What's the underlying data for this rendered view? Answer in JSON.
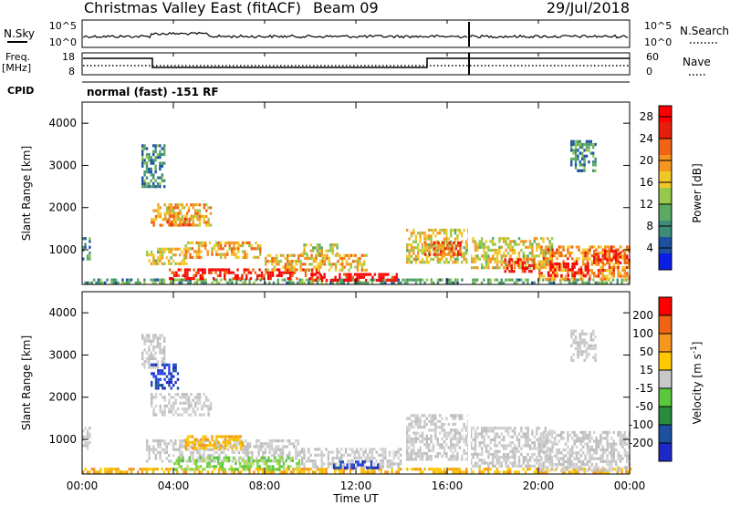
{
  "header": {
    "title": "Christmas Valley East (fitACF)",
    "beam": "Beam 09",
    "date": "29/Jul/2018"
  },
  "nsky_panel": {
    "left_label": "N.Sky",
    "right_label": "N.Search",
    "left_ticks": [
      "10^5",
      "10^0"
    ],
    "right_ticks": [
      "10^5",
      "10^0"
    ]
  },
  "freq_panel": {
    "left_label": "Freq.",
    "left_unit": "[MHz]",
    "left_ticks": [
      "18",
      "8"
    ],
    "right_label": "Nave",
    "right_ticks": [
      "60",
      "0"
    ]
  },
  "cpid": {
    "label": "CPID",
    "value": "normal (fast) -151 RF"
  },
  "time_axis": {
    "label": "Time UT",
    "ticks": [
      "00:00",
      "04:00",
      "08:00",
      "12:00",
      "16:00",
      "20:00",
      "00:00"
    ]
  },
  "chart_data": [
    {
      "type": "heatmap",
      "name": "Power",
      "ylabel": "Slant Range [km]",
      "xlabel": "Time UT",
      "x_range_hours": [
        0,
        24
      ],
      "ylim": [
        180,
        4500
      ],
      "yticks": [
        1000,
        2000,
        3000,
        4000
      ],
      "colorbar": {
        "label": "Power [dB]",
        "ticks": [
          4,
          8,
          12,
          16,
          20,
          24,
          28
        ],
        "range": [
          0,
          30
        ],
        "colors": [
          "#0a1ee6",
          "#1e50a0",
          "#3c8c78",
          "#5aaa64",
          "#96c84b",
          "#f0c828",
          "#f5961e",
          "#f06414",
          "#e61e0a",
          "#ff0000"
        ]
      },
      "regions": [
        {
          "t0": 0.0,
          "t1": 0.35,
          "r0": 800,
          "r1": 1300,
          "level": 8
        },
        {
          "t0": 0.0,
          "t1": 24.0,
          "r0": 200,
          "r1": 320,
          "level": 10
        },
        {
          "t0": 2.6,
          "t1": 3.6,
          "r0": 2500,
          "r1": 3500,
          "level": 8
        },
        {
          "t0": 3.0,
          "t1": 5.6,
          "r0": 1550,
          "r1": 2100,
          "level": 18
        },
        {
          "t0": 3.6,
          "t1": 4.8,
          "r0": 1600,
          "r1": 1900,
          "level": 22
        },
        {
          "t0": 2.8,
          "t1": 4.6,
          "r0": 650,
          "r1": 1050,
          "level": 16
        },
        {
          "t0": 4.5,
          "t1": 7.8,
          "r0": 850,
          "r1": 1200,
          "level": 18
        },
        {
          "t0": 3.8,
          "t1": 10.5,
          "r0": 320,
          "r1": 560,
          "level": 26
        },
        {
          "t0": 10.0,
          "t1": 13.8,
          "r0": 250,
          "r1": 450,
          "level": 28
        },
        {
          "t0": 8.0,
          "t1": 12.5,
          "r0": 500,
          "r1": 900,
          "level": 18
        },
        {
          "t0": 9.6,
          "t1": 11.2,
          "r0": 900,
          "r1": 1150,
          "level": 14
        },
        {
          "t0": 14.2,
          "t1": 16.9,
          "r0": 700,
          "r1": 1500,
          "level": 16
        },
        {
          "t0": 15.0,
          "t1": 16.6,
          "r0": 900,
          "r1": 1200,
          "level": 22
        },
        {
          "t0": 17.0,
          "t1": 20.6,
          "r0": 600,
          "r1": 1300,
          "level": 16
        },
        {
          "t0": 18.5,
          "t1": 19.8,
          "r0": 500,
          "r1": 800,
          "level": 26
        },
        {
          "t0": 20.0,
          "t1": 24.0,
          "r0": 300,
          "r1": 1100,
          "level": 20
        },
        {
          "t0": 20.4,
          "t1": 22.2,
          "r0": 400,
          "r1": 700,
          "level": 28
        },
        {
          "t0": 22.4,
          "t1": 24.0,
          "r0": 700,
          "r1": 1000,
          "level": 26
        },
        {
          "t0": 21.4,
          "t1": 22.5,
          "r0": 2900,
          "r1": 3600,
          "level": 8
        }
      ]
    },
    {
      "type": "heatmap",
      "name": "Velocity",
      "ylabel": "Slant Range [km]",
      "xlabel": "Time UT",
      "x_range_hours": [
        0,
        24
      ],
      "ylim": [
        180,
        4500
      ],
      "yticks": [
        1000,
        2000,
        3000,
        4000
      ],
      "colorbar": {
        "label": "Velocity [m s^-1]",
        "ticks": [
          200,
          100,
          50,
          15,
          -15,
          -50,
          -100,
          -200
        ],
        "colors": [
          "#1e28c8",
          "#1e50a0",
          "#288c3c",
          "#5ac83c",
          "#c8c8c8",
          "#ffc800",
          "#f5961e",
          "#f06414",
          "#ff0000"
        ]
      },
      "regions": [
        {
          "t0": 0.0,
          "t1": 0.35,
          "r0": 800,
          "r1": 1300,
          "cat": "gray"
        },
        {
          "t0": 0.0,
          "t1": 24.0,
          "r0": 200,
          "r1": 330,
          "cat": "orange"
        },
        {
          "t0": 2.6,
          "t1": 3.6,
          "r0": 2700,
          "r1": 3500,
          "cat": "gray"
        },
        {
          "t0": 3.0,
          "t1": 4.2,
          "r0": 2200,
          "r1": 2800,
          "cat": "blue"
        },
        {
          "t0": 3.0,
          "t1": 5.6,
          "r0": 1600,
          "r1": 2100,
          "cat": "gray"
        },
        {
          "t0": 2.8,
          "t1": 9.5,
          "r0": 500,
          "r1": 1000,
          "cat": "gray"
        },
        {
          "t0": 4.5,
          "t1": 7.0,
          "r0": 800,
          "r1": 1100,
          "cat": "orange"
        },
        {
          "t0": 4.0,
          "t1": 9.5,
          "r0": 320,
          "r1": 600,
          "cat": "green"
        },
        {
          "t0": 9.5,
          "t1": 14.0,
          "r0": 320,
          "r1": 800,
          "cat": "gray"
        },
        {
          "t0": 11.0,
          "t1": 13.0,
          "r0": 300,
          "r1": 500,
          "cat": "blue"
        },
        {
          "t0": 14.2,
          "t1": 16.9,
          "r0": 500,
          "r1": 1600,
          "cat": "gray"
        },
        {
          "t0": 17.0,
          "t1": 20.6,
          "r0": 400,
          "r1": 1300,
          "cat": "gray"
        },
        {
          "t0": 20.0,
          "t1": 24.0,
          "r0": 300,
          "r1": 1200,
          "cat": "gray"
        },
        {
          "t0": 21.4,
          "t1": 22.5,
          "r0": 2900,
          "r1": 3600,
          "cat": "gray"
        }
      ]
    }
  ]
}
